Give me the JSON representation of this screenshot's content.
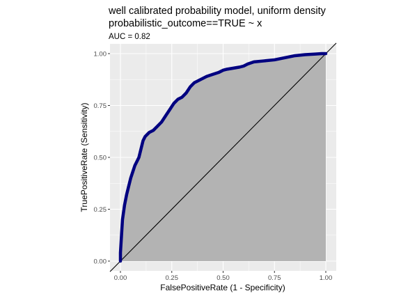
{
  "chart_data": {
    "type": "line",
    "title": "well calibrated probability model, uniform density",
    "title_line2": "probabilistic_outcome==TRUE ~ x",
    "subtitle": "AUC = 0.82",
    "xlabel": "FalsePositiveRate (1 - Specificity)",
    "ylabel": "TruePositiveRate (Sensitivity)",
    "xlim": [
      0,
      1
    ],
    "ylim": [
      0,
      1
    ],
    "x_ticks": [
      0,
      0.25,
      0.5,
      0.75,
      1
    ],
    "y_ticks": [
      0,
      0.25,
      0.5,
      0.75,
      1
    ],
    "x_tick_labels": [
      "0.00",
      "0.25",
      "0.50",
      "0.75",
      "1.00"
    ],
    "y_tick_labels": [
      "0.00",
      "0.25",
      "0.50",
      "0.75",
      "1.00"
    ],
    "grid": true,
    "reference_line": {
      "slope": 1,
      "intercept": 0
    },
    "series": [
      {
        "x": [
          0,
          0,
          0.005,
          0.01,
          0.02,
          0.03,
          0.04,
          0.05,
          0.06,
          0.07,
          0.08,
          0.09,
          0.1,
          0.11,
          0.12,
          0.14,
          0.16,
          0.18,
          0.2,
          0.22,
          0.24,
          0.26,
          0.28,
          0.3,
          0.32,
          0.34,
          0.36,
          0.38,
          0.4,
          0.42,
          0.45,
          0.48,
          0.5,
          0.52,
          0.55,
          0.58,
          0.6,
          0.62,
          0.65,
          0.7,
          0.75,
          0.8,
          0.85,
          0.9,
          0.95,
          0.98,
          1
        ],
        "y": [
          0,
          0.04,
          0.12,
          0.2,
          0.27,
          0.32,
          0.36,
          0.4,
          0.43,
          0.46,
          0.48,
          0.5,
          0.54,
          0.58,
          0.6,
          0.62,
          0.63,
          0.65,
          0.67,
          0.7,
          0.73,
          0.76,
          0.78,
          0.79,
          0.81,
          0.84,
          0.86,
          0.87,
          0.88,
          0.89,
          0.9,
          0.91,
          0.92,
          0.925,
          0.93,
          0.935,
          0.94,
          0.95,
          0.96,
          0.965,
          0.97,
          0.98,
          0.99,
          0.995,
          0.998,
          1,
          1
        ],
        "color": "#000080"
      }
    ],
    "colors": {
      "panel_background": "#ebebeb",
      "grid_major": "#ffffff",
      "area_fill": "#b3b3b3",
      "curve": "#000080",
      "diagonal": "#000000"
    }
  }
}
